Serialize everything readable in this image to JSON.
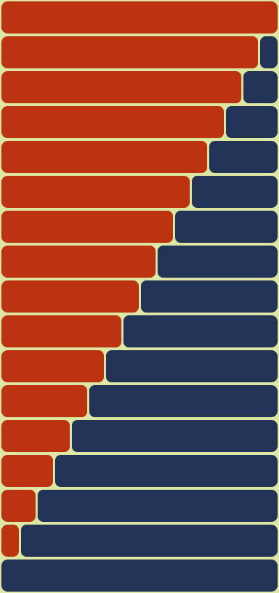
{
  "colors": {
    "background": "#dde6a2",
    "left_segment": "#bb3311",
    "right_segment": "#223355"
  },
  "rows": [
    {
      "left_fraction": 1.0
    },
    {
      "left_fraction": 0.9375
    },
    {
      "left_fraction": 0.875
    },
    {
      "left_fraction": 0.8125
    },
    {
      "left_fraction": 0.75
    },
    {
      "left_fraction": 0.6875
    },
    {
      "left_fraction": 0.625
    },
    {
      "left_fraction": 0.5625
    },
    {
      "left_fraction": 0.5
    },
    {
      "left_fraction": 0.4375
    },
    {
      "left_fraction": 0.375
    },
    {
      "left_fraction": 0.3125
    },
    {
      "left_fraction": 0.25
    },
    {
      "left_fraction": 0.1875
    },
    {
      "left_fraction": 0.125
    },
    {
      "left_fraction": 0.0625
    },
    {
      "left_fraction": 0.0
    }
  ]
}
